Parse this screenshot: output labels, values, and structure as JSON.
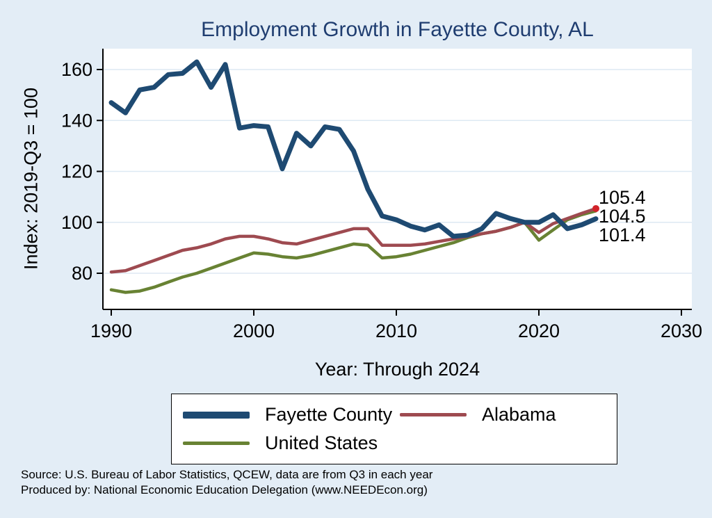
{
  "colors": {
    "background": "#e3edf6",
    "plot_bg": "#ffffff",
    "grid": "#dde9f3",
    "axis": "#000000",
    "title": "#1f3d70",
    "marker": "#d2232a"
  },
  "chart_data": {
    "type": "line",
    "title": "Employment Growth in Fayette County, AL",
    "xlabel": "Year: Through 2024",
    "ylabel": "Index: 2019-Q3 = 100",
    "x_ticks": [
      1990,
      2000,
      2010,
      2020,
      2030
    ],
    "y_ticks": [
      80,
      100,
      120,
      140,
      160
    ],
    "xlim": [
      1989.4,
      2030.7
    ],
    "ylim": [
      65.8,
      168.2
    ],
    "grid": "horizontal",
    "legend_position": "bottom",
    "x": [
      1990,
      1991,
      1992,
      1993,
      1994,
      1995,
      1996,
      1997,
      1998,
      1999,
      2000,
      2001,
      2002,
      2003,
      2004,
      2005,
      2006,
      2007,
      2008,
      2009,
      2010,
      2011,
      2012,
      2013,
      2014,
      2015,
      2016,
      2017,
      2018,
      2019,
      2020,
      2021,
      2022,
      2023,
      2024
    ],
    "series": [
      {
        "name": "Fayette  County",
        "color": "#1e4a72",
        "width": 7,
        "values": [
          147,
          143,
          152,
          153,
          158,
          158.5,
          163,
          153,
          162,
          137,
          138,
          137.5,
          121,
          135,
          130,
          137.5,
          136.5,
          128,
          113,
          102.5,
          101,
          98.5,
          97,
          99,
          94.5,
          95,
          97.5,
          103.5,
          101.5,
          100,
          100,
          103,
          97.5,
          99,
          101.4
        ]
      },
      {
        "name": "Alabama",
        "color": "#9e4a50",
        "width": 4.5,
        "end_marker": true,
        "values": [
          80.5,
          81,
          83,
          85,
          87,
          89,
          90,
          91.5,
          93.5,
          94.5,
          94.5,
          93.5,
          92,
          91.5,
          93,
          94.5,
          96,
          97.5,
          97.5,
          91,
          91,
          91,
          91.5,
          92.5,
          93.5,
          94.5,
          95.5,
          96.5,
          98,
          100,
          96,
          99.5,
          101.5,
          103.5,
          105.4
        ]
      },
      {
        "name": "United States",
        "color": "#688233",
        "width": 4.5,
        "values": [
          73.5,
          72.5,
          73,
          74.5,
          76.5,
          78.5,
          80,
          82,
          84,
          86,
          88,
          87.5,
          86.5,
          86,
          87,
          88.5,
          90,
          91.5,
          91,
          86,
          86.5,
          87.5,
          89,
          90.5,
          92,
          94,
          95.5,
          96.5,
          98,
          100,
          93,
          97,
          101,
          103,
          104.5
        ]
      }
    ],
    "end_labels": [
      "105.4",
      "104.5",
      "101.4"
    ]
  },
  "footer": {
    "line1": "Source: U.S. Bureau of Labor Statistics, QCEW, data are from Q3 in each year",
    "line2": "Produced by: National Economic Education Delegation (www.NEEDEcon.org)"
  }
}
